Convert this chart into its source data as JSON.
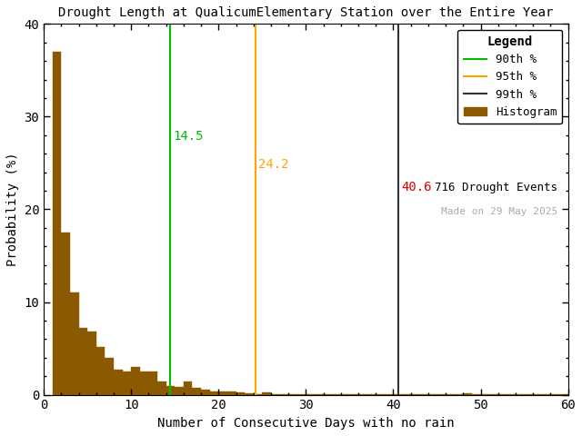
{
  "title": "Drought Length at QualicumElementary Station over the Entire Year",
  "xlabel": "Number of Consecutive Days with no rain",
  "ylabel": "Probability (%)",
  "xlim": [
    0,
    60
  ],
  "ylim": [
    0,
    40
  ],
  "bar_color": "#8B5A00",
  "bar_edge_color": "#8B5A00",
  "background_color": "#ffffff",
  "percentile_90_val": 14.5,
  "percentile_95_val": 24.2,
  "percentile_99_val": 40.6,
  "percentile_90_color": "#00bb00",
  "percentile_95_color": "#FFA500",
  "percentile_99_color": "#dd0000",
  "percentile_99_legend_color": "#333333",
  "n_events": 716,
  "made_on": "Made on 29 May 2025",
  "legend_title": "Legend",
  "bar_heights": [
    37.0,
    17.5,
    11.0,
    7.2,
    6.8,
    5.2,
    4.0,
    2.7,
    2.5,
    3.0,
    2.5,
    2.5,
    1.4,
    0.9,
    0.8,
    1.4,
    0.7,
    0.6,
    0.4,
    0.4,
    0.4,
    0.3,
    0.2,
    0.1,
    0.3,
    0.1,
    0.1,
    0.1,
    0.05,
    0.05,
    0.05,
    0.05,
    0.05,
    0.05,
    0.05,
    0.05,
    0.05,
    0.05,
    0.05,
    0.05,
    0.05,
    0.05,
    0.05,
    0.05,
    0.05,
    0.05,
    0.05,
    0.2,
    0.05,
    0.05,
    0.05,
    0.05,
    0.05,
    0.05,
    0.05,
    0.05,
    0.05,
    0.05,
    0.05
  ],
  "xticks": [
    0,
    10,
    20,
    30,
    40,
    50,
    60
  ],
  "yticks": [
    0,
    10,
    20,
    30,
    40
  ],
  "figwidth": 6.4,
  "figheight": 4.8,
  "dpi": 100
}
